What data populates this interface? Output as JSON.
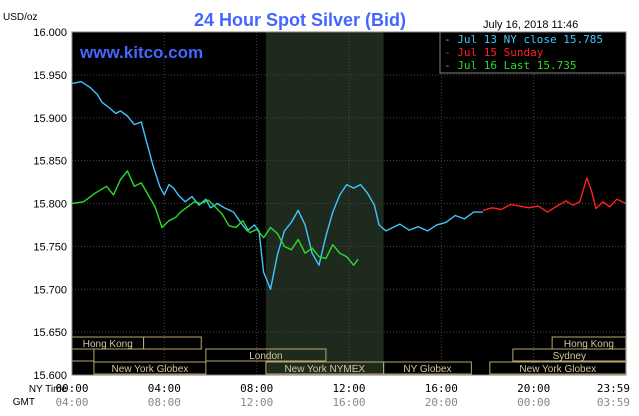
{
  "chart_data": {
    "type": "line",
    "title": "24 Hour Spot Silver (Bid)",
    "unit_label": "USD/oz",
    "timestamp": "July 16, 2018 11:46",
    "watermark": "www.kitco.com",
    "ylim": [
      15.6,
      16.0
    ],
    "yticks": [
      "16.000",
      "15.950",
      "15.900",
      "15.850",
      "15.800",
      "15.750",
      "15.700",
      "15.650",
      "15.600"
    ],
    "xlim": [
      0,
      24
    ],
    "xticks_ny": [
      "00:00",
      "04:00",
      "08:00",
      "12:00",
      "16:00",
      "20:00",
      "23:59"
    ],
    "xticks_gmt": [
      "04:00",
      "08:00",
      "12:00",
      "16:00",
      "20:00",
      "00:00",
      "03:59"
    ],
    "axis_name_ny": "NY Time",
    "axis_name_gmt": "GMT",
    "shaded_hours": [
      8.4,
      13.5
    ],
    "legend": [
      {
        "text": "Jul 13 NY close 15.785",
        "color": "#3fc6ff"
      },
      {
        "text": "Jul 15 Sunday",
        "color": "#ff2020"
      },
      {
        "text": "Jul 16 Last 15.735",
        "color": "#2adb2a"
      }
    ],
    "colors": {
      "background": "#000000",
      "grid": "#444444",
      "shade": "#1f2a1f",
      "title": "#4466ff",
      "watermark": "#4466ff",
      "session_box": "#b9a86a"
    },
    "series": [
      {
        "color": "#3fc6ff",
        "x": [
          0,
          0.4,
          0.8,
          1.1,
          1.3,
          1.6,
          1.9,
          2.1,
          2.4,
          2.7,
          3.0,
          3.2,
          3.5,
          3.8,
          4.0,
          4.2,
          4.4,
          4.6,
          4.9,
          5.2,
          5.5,
          5.8,
          6.0,
          6.3,
          6.6,
          7.0,
          7.3,
          7.6,
          7.9,
          8.1,
          8.3,
          8.6,
          8.9,
          9.2,
          9.5,
          9.8,
          10.1,
          10.4,
          10.7,
          11.0,
          11.3,
          11.6,
          11.9,
          12.2,
          12.5,
          12.8,
          13.1,
          13.3,
          13.6,
          13.9,
          14.2,
          14.6,
          15.0,
          15.4,
          15.8,
          16.2,
          16.6,
          17.0,
          17.4,
          17.8
        ],
        "y": [
          15.94,
          15.942,
          15.935,
          15.927,
          15.918,
          15.912,
          15.905,
          15.908,
          15.902,
          15.892,
          15.895,
          15.875,
          15.845,
          15.82,
          15.81,
          15.822,
          15.818,
          15.81,
          15.802,
          15.808,
          15.798,
          15.805,
          15.795,
          15.8,
          15.795,
          15.79,
          15.778,
          15.768,
          15.775,
          15.768,
          15.72,
          15.7,
          15.74,
          15.768,
          15.778,
          15.792,
          15.775,
          15.742,
          15.728,
          15.762,
          15.79,
          15.81,
          15.822,
          15.818,
          15.822,
          15.812,
          15.798,
          15.775,
          15.768,
          15.772,
          15.776,
          15.769,
          15.773,
          15.768,
          15.775,
          15.778,
          15.786,
          15.782,
          15.79,
          15.79
        ]
      },
      {
        "color": "#ff2020",
        "x": [
          17.8,
          18.2,
          18.6,
          19.0,
          19.4,
          19.8,
          20.2,
          20.6,
          21.0,
          21.4,
          21.7,
          22.0,
          22.3,
          22.5,
          22.7,
          23.0,
          23.3,
          23.6,
          23.99
        ],
        "y": [
          15.792,
          15.795,
          15.793,
          15.799,
          15.797,
          15.795,
          15.797,
          15.79,
          15.797,
          15.803,
          15.798,
          15.802,
          15.83,
          15.815,
          15.794,
          15.802,
          15.796,
          15.805,
          15.8
        ]
      },
      {
        "color": "#2adb2a",
        "x": [
          0,
          0.5,
          1.0,
          1.5,
          1.8,
          2.1,
          2.4,
          2.7,
          3.0,
          3.3,
          3.6,
          3.9,
          4.2,
          4.5,
          4.7,
          5.0,
          5.3,
          5.6,
          5.9,
          6.2,
          6.5,
          6.8,
          7.1,
          7.4,
          7.7,
          8.0,
          8.3,
          8.6,
          8.9,
          9.2,
          9.5,
          9.8,
          10.1,
          10.4,
          10.7,
          11.0,
          11.3,
          11.6,
          11.9,
          12.2,
          12.4
        ],
        "y": [
          15.8,
          15.802,
          15.812,
          15.82,
          15.81,
          15.828,
          15.838,
          15.82,
          15.824,
          15.81,
          15.796,
          15.772,
          15.78,
          15.784,
          15.79,
          15.796,
          15.802,
          15.8,
          15.804,
          15.796,
          15.788,
          15.774,
          15.772,
          15.78,
          15.766,
          15.77,
          15.76,
          15.772,
          15.765,
          15.75,
          15.746,
          15.758,
          15.742,
          15.748,
          15.738,
          15.736,
          15.752,
          15.742,
          15.738,
          15.728,
          15.735
        ]
      }
    ],
    "sessions": [
      {
        "label": "Hong Kong",
        "start": 0,
        "end": 3.1,
        "row": 0
      },
      {
        "label": "",
        "start": 3.1,
        "end": 5.6,
        "row": 0
      },
      {
        "label": "Hong Kong",
        "start": 20.8,
        "end": 23.99,
        "row": 0
      },
      {
        "label": "",
        "start": 0,
        "end": 0.95,
        "row": 1
      },
      {
        "label": "London",
        "start": 5.8,
        "end": 11.0,
        "row": 1
      },
      {
        "label": "Sydney",
        "start": 19.1,
        "end": 23.99,
        "row": 1
      },
      {
        "label": "New York Globex",
        "start": 0.95,
        "end": 5.8,
        "row": 2
      },
      {
        "label": "New York NYMEX",
        "start": 8.4,
        "end": 13.5,
        "row": 2
      },
      {
        "label": "NY Globex",
        "start": 13.5,
        "end": 17.3,
        "row": 2
      },
      {
        "label": "New York Globex",
        "start": 18.1,
        "end": 23.99,
        "row": 2
      }
    ]
  }
}
